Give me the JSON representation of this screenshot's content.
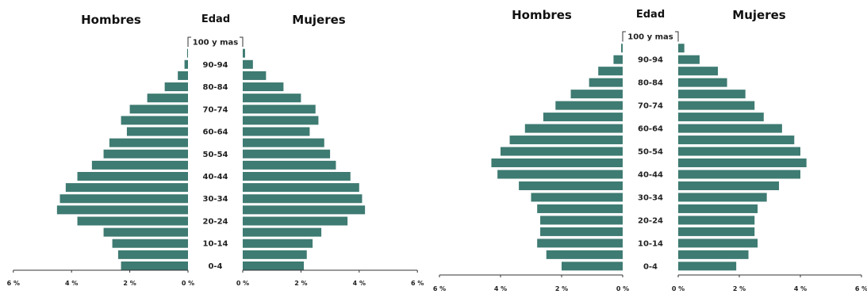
{
  "chart_data": [
    {
      "type": "bar",
      "orientation": "horizontal",
      "title_left": "Hombres",
      "title_center": "Edad",
      "title_right": "Mujeres",
      "categories": [
        "0-4",
        "5-9",
        "10-14",
        "15-19",
        "20-24",
        "25-29",
        "30-34",
        "35-39",
        "40-44",
        "45-49",
        "50-54",
        "55-59",
        "60-64",
        "65-69",
        "70-74",
        "75-79",
        "80-84",
        "85-89",
        "90-94",
        "95-99",
        "100 y mas"
      ],
      "category_labels_shown": [
        "0-4",
        "10-14",
        "20-24",
        "30-34",
        "40-44",
        "50-54",
        "60-64",
        "70-74",
        "80-84",
        "90-94",
        "100 y mas"
      ],
      "series": [
        {
          "name": "Hombres",
          "values": [
            2.3,
            2.4,
            2.6,
            2.9,
            3.8,
            4.5,
            4.4,
            4.2,
            3.8,
            3.3,
            2.9,
            2.7,
            2.1,
            2.3,
            2.0,
            1.4,
            0.8,
            0.35,
            0.12,
            0.03,
            0.01
          ]
        },
        {
          "name": "Mujeres",
          "values": [
            2.1,
            2.2,
            2.4,
            2.7,
            3.6,
            4.2,
            4.1,
            4.0,
            3.7,
            3.2,
            3.0,
            2.8,
            2.3,
            2.6,
            2.5,
            2.0,
            1.4,
            0.8,
            0.35,
            0.08,
            0.01
          ]
        }
      ],
      "x_ticks": [
        "6 %",
        "4 %",
        "2 %",
        "0 %",
        "0 %",
        "2 %",
        "4 %",
        "6 %"
      ],
      "xlim": [
        0,
        6
      ],
      "bar_color": "#3e7b72"
    },
    {
      "type": "bar",
      "orientation": "horizontal",
      "title_left": "Hombres",
      "title_center": "Edad",
      "title_right": "Mujeres",
      "categories": [
        "0-4",
        "5-9",
        "10-14",
        "15-19",
        "20-24",
        "25-29",
        "30-34",
        "35-39",
        "40-44",
        "45-49",
        "50-54",
        "55-59",
        "60-64",
        "65-69",
        "70-74",
        "75-79",
        "80-84",
        "85-89",
        "90-94",
        "95-99",
        "100 y mas"
      ],
      "category_labels_shown": [
        "0-4",
        "10-14",
        "20-24",
        "30-34",
        "40-44",
        "50-54",
        "60-64",
        "70-74",
        "80-84",
        "90-94",
        "100 y mas"
      ],
      "series": [
        {
          "name": "Hombres",
          "values": [
            2.0,
            2.5,
            2.8,
            2.7,
            2.7,
            2.8,
            3.0,
            3.4,
            4.1,
            4.3,
            4.0,
            3.7,
            3.2,
            2.6,
            2.2,
            1.7,
            1.1,
            0.8,
            0.3,
            0.05,
            0.01
          ]
        },
        {
          "name": "Mujeres",
          "values": [
            1.9,
            2.3,
            2.6,
            2.5,
            2.5,
            2.6,
            2.9,
            3.3,
            4.0,
            4.2,
            4.0,
            3.8,
            3.4,
            2.8,
            2.5,
            2.2,
            1.6,
            1.3,
            0.7,
            0.2,
            0.01
          ]
        }
      ],
      "x_ticks": [
        "6 %",
        "4 %",
        "2 %",
        "0 %",
        "0 %",
        "2 %",
        "4 %",
        "6 %"
      ],
      "xlim": [
        0,
        6
      ],
      "bar_color": "#3e7b72"
    }
  ]
}
